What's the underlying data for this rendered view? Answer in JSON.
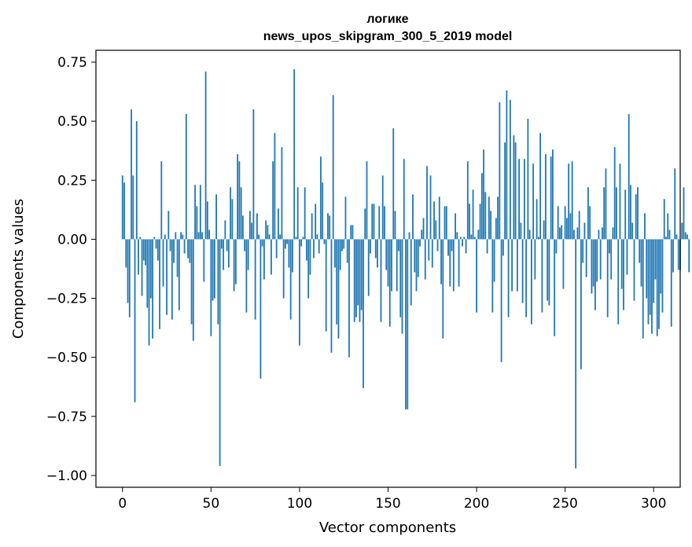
{
  "chart_data": {
    "type": "bar",
    "title_line1": "логике",
    "title_line2": "news_upos_skipgram_300_5_2019 model",
    "xlabel": "Vector components",
    "ylabel": "Components values",
    "xlim": [
      -15,
      315
    ],
    "ylim": [
      -1.05,
      0.8
    ],
    "xticks": [
      0,
      50,
      100,
      150,
      200,
      250,
      300
    ],
    "xtick_labels": [
      "0",
      "50",
      "100",
      "150",
      "200",
      "250",
      "300"
    ],
    "yticks": [
      0.75,
      0.5,
      0.25,
      0.0,
      -0.25,
      -0.5,
      -0.75,
      -1.0
    ],
    "ytick_labels": [
      "0.75",
      "0.50",
      "0.25",
      "0.00",
      "−0.25",
      "−0.50",
      "−0.75",
      "−1.00"
    ],
    "bar_color": "#1f77b4",
    "values": [
      0.27,
      0.24,
      -0.12,
      -0.27,
      -0.33,
      0.55,
      0.27,
      -0.69,
      0.5,
      -0.15,
      0.01,
      -0.24,
      -0.09,
      -0.11,
      -0.29,
      -0.45,
      -0.25,
      -0.42,
      0.01,
      -0.04,
      -0.09,
      -0.38,
      0.33,
      -0.2,
      0.02,
      -0.32,
      0.12,
      -0.05,
      -0.34,
      -0.1,
      0.03,
      -0.16,
      -0.3,
      0.03,
      0.02,
      -0.06,
      0.53,
      -0.08,
      -0.1,
      -0.36,
      -0.43,
      0.23,
      0.14,
      0.03,
      0.23,
      0.03,
      -0.18,
      0.71,
      0.16,
      0.04,
      -0.41,
      -0.26,
      -0.25,
      0.19,
      -0.36,
      -0.96,
      -0.04,
      -0.13,
      0.08,
      -0.05,
      -0.12,
      0.22,
      0.17,
      -0.22,
      -0.19,
      0.36,
      0.33,
      0.22,
      0.1,
      -0.05,
      -0.31,
      -0.13,
      0.12,
      0.07,
      0.55,
      -0.34,
      0.11,
      0.02,
      -0.59,
      -0.03,
      -0.17,
      0.08,
      0.06,
      0.02,
      -0.15,
      0.33,
      0.45,
      -0.08,
      0.13,
      0.02,
      0.39,
      -0.25,
      -0.04,
      -0.02,
      -0.12,
      -0.34,
      -0.14,
      0.72,
      0.01,
      0.22,
      -0.45,
      -0.03,
      0.01,
      0.22,
      -0.09,
      -0.25,
      -0.15,
      0.11,
      -0.08,
      0.15,
      0.02,
      -0.06,
      0.35,
      0.24,
      -0.02,
      -0.39,
      0.11,
      0.1,
      -0.48,
      0.61,
      -0.12,
      -0.36,
      -0.42,
      -0.13,
      -0.05,
      -0.04,
      0.18,
      -0.1,
      -0.5,
      0.06,
      0.06,
      -0.35,
      -0.33,
      -0.28,
      -0.35,
      -0.3,
      -0.63,
      0.13,
      0.33,
      -0.24,
      -0.06,
      0.15,
      0.15,
      -0.08,
      -0.12,
      0.14,
      -0.35,
      0.27,
      0.14,
      -0.13,
      -0.2,
      -0.37,
      -0.22,
      0.47,
      0.12,
      -0.22,
      -0.05,
      -0.33,
      -0.4,
      0.34,
      -0.72,
      -0.72,
      0.03,
      -0.28,
      0.19,
      -0.14,
      -0.22,
      -0.16,
      -0.03,
      0.04,
      0.09,
      -0.17,
      0.31,
      -0.09,
      0.27,
      -0.12,
      0.16,
      0.08,
      -0.05,
      0.18,
      -0.19,
      -0.42,
      0.14,
      0.14,
      -0.07,
      -0.2,
      -0.05,
      -0.22,
      0.11,
      0.03,
      -0.2,
      0.01,
      -0.03,
      0.01,
      -0.06,
      0.33,
      0.15,
      0.02,
      0.21,
      0.01,
      -0.31,
      0.04,
      0.15,
      0.28,
      0.38,
      0.2,
      -0.06,
      0.18,
      0.12,
      -0.31,
      -0.18,
      0.09,
      0.18,
      0.58,
      -0.52,
      -0.07,
      0.41,
      0.63,
      -0.33,
      0.59,
      -0.22,
      0.44,
      0.41,
      -0.22,
      0.34,
      0.07,
      -0.27,
      0.34,
      -0.33,
      0.51,
      0.04,
      -0.36,
      0.32,
      -0.17,
      0.17,
      0.01,
      0.45,
      -0.31,
      0.08,
      0.36,
      -0.26,
      -0.28,
      0.35,
      0.38,
      -0.41,
      -0.06,
      0.14,
      0.05,
      0.06,
      -0.21,
      0.14,
      0.09,
      0.32,
      0.11,
      0.33,
      0.04,
      -0.97,
      0.05,
      0.12,
      -0.55,
      -0.1,
      0.07,
      -0.16,
      0.22,
      0.14,
      -0.23,
      -0.2,
      -0.3,
      -0.18,
      0.04,
      -0.17,
      0.05,
      0.22,
      0.3,
      -0.33,
      -0.06,
      -0.17,
      0.05,
      0.39,
      0.22,
      -0.36,
      0.32,
      -0.21,
      -0.3,
      0.21,
      -0.15,
      0.53,
      0.23,
      0.07,
      -0.26,
      0.19,
      0.22,
      -0.1,
      -0.2,
      -0.42,
      0.11,
      -0.25,
      -0.36,
      -0.32,
      -0.4,
      -0.27,
      -0.17,
      -0.41,
      -0.38,
      -0.23,
      -0.31,
      0.17,
      0.01,
      0.11,
      0.04,
      -0.37,
      -0.14,
      0.3,
      0.02,
      -0.13,
      -0.13,
      0.07,
      0.22,
      0.03,
      0.02,
      -0.14
    ]
  }
}
